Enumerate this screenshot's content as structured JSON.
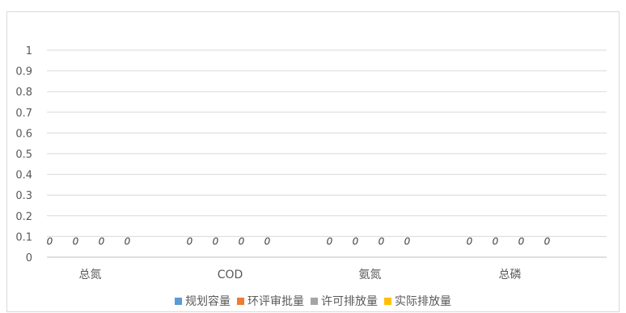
{
  "chart_data": {
    "type": "bar",
    "title": "",
    "xlabel": "",
    "ylabel": "",
    "categories": [
      "总氮",
      "COD",
      "氨氮",
      "总磷"
    ],
    "ylim": [
      0,
      1
    ],
    "yticks": [
      "0",
      "0.1",
      "0.2",
      "0.3",
      "0.4",
      "0.5",
      "0.6",
      "0.7",
      "0.8",
      "0.9",
      "1"
    ],
    "grid": true,
    "legend_position": "bottom",
    "data_labels": true,
    "series": [
      {
        "name": "规划容量",
        "values": [
          0,
          0,
          0,
          0
        ],
        "color": "#5b9bd5"
      },
      {
        "name": "环评审批量",
        "values": [
          0,
          0,
          0,
          0
        ],
        "color": "#ed7d31"
      },
      {
        "name": "许可排放量",
        "values": [
          0,
          0,
          0,
          0
        ],
        "color": "#a5a5a5"
      },
      {
        "name": "实际排放量",
        "values": [
          0,
          0,
          0,
          0
        ],
        "color": "#ffc000"
      }
    ]
  }
}
